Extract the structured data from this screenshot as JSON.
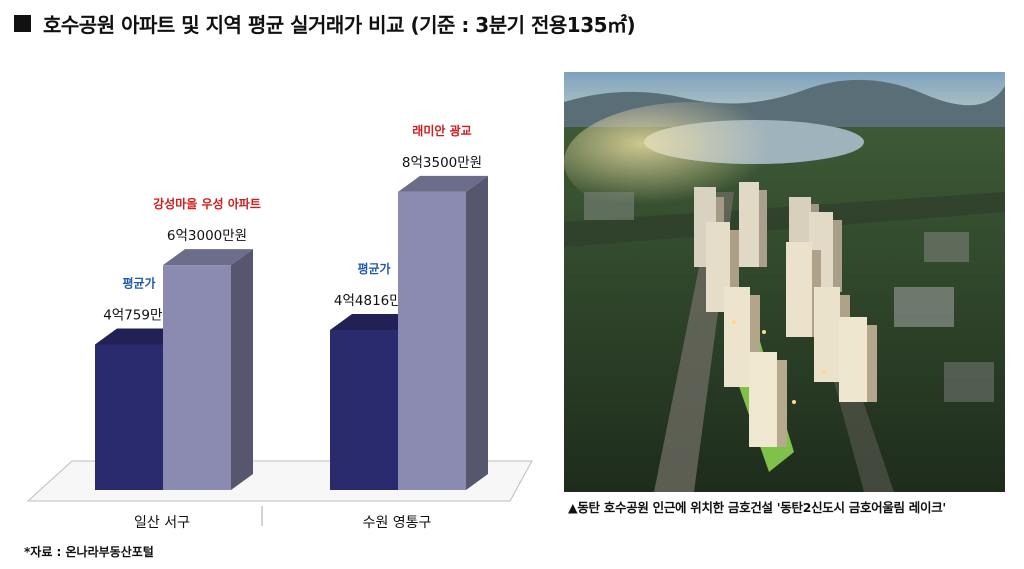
{
  "title": "호수공원 아파트 및 지역 평균 실거래가 비교 (기준 : 3분기 전용135㎡)",
  "chart_data": {
    "type": "bar",
    "categories": [
      "일산 서구",
      "수원 영통구"
    ],
    "series": [
      {
        "name": "평균가",
        "values": [
          4.0759,
          4.4816
        ],
        "labels": [
          "4억759만원",
          "4억4816만원"
        ],
        "color": "#2a2a6e"
      },
      {
        "name": "호수공원 아파트",
        "values": [
          6.3,
          8.35
        ],
        "labels": [
          "6억3000만원",
          "8억3500만원"
        ],
        "color": "#8b8bb2"
      }
    ],
    "annotations": [
      {
        "text": "평균가",
        "category": 0,
        "series": 0,
        "color": "#1f5aa8"
      },
      {
        "text": "강성마을 우성 아파트",
        "category": 0,
        "series": 1,
        "color": "#d01c1c"
      },
      {
        "text": "평균가",
        "category": 1,
        "series": 0,
        "color": "#1f5aa8"
      },
      {
        "text": "래미안 광교",
        "category": 1,
        "series": 1,
        "color": "#d01c1c"
      }
    ],
    "unit": "억원",
    "ylim": [
      0,
      9
    ],
    "grid": false,
    "legend": "none"
  },
  "photo": {
    "alt": "동탄 금호어울림 레이크 조감도"
  },
  "caption": "▲동탄 호수공원 인근에 위치한 금호건설 '동탄2신도시 금호어울림 레이크'",
  "source": "*자료 : 온나라부동산포털"
}
